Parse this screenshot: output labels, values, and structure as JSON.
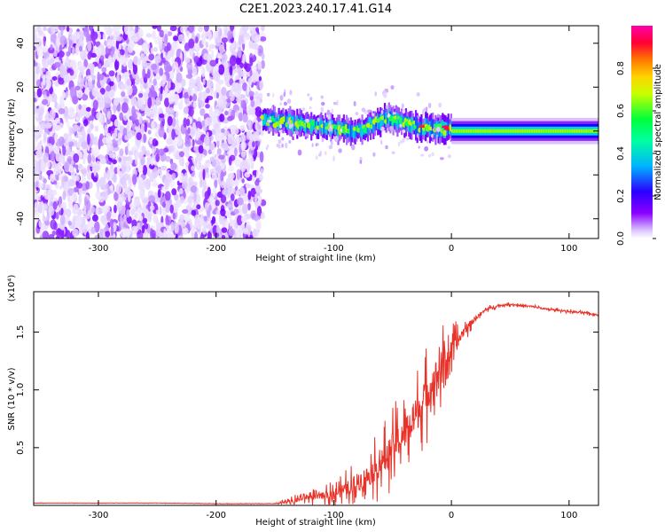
{
  "chart_data": [
    {
      "type": "heatmap",
      "title": "C2E1.2023.240.17.41.G14",
      "xlabel": "Height of straight line (km)",
      "ylabel": "Frequency (Hz)",
      "xlim": [
        -355,
        125
      ],
      "ylim": [
        -49,
        48
      ],
      "xticks": [
        -300,
        -200,
        -100,
        0,
        100
      ],
      "yticks": [
        -40,
        -20,
        0,
        20,
        40
      ],
      "colorbar": {
        "label": "Normalized spectral amplitude",
        "range": [
          0.0,
          1.0
        ],
        "ticks": [
          "0.0",
          "0.2",
          "0.4",
          "0.6",
          "0.8"
        ],
        "colormap": [
          "#ffffff",
          "#d9c2ff",
          "#7a00ff",
          "#1a00ff",
          "#00c8ff",
          "#00ff66",
          "#aaff00",
          "#ffd400",
          "#ff7a00",
          "#ff0033",
          "#ff00aa"
        ]
      },
      "regions": [
        {
          "name": "noise",
          "x_range": [
            -355,
            -160
          ],
          "y_range": [
            -49,
            48
          ]
        },
        {
          "name": "transition",
          "x_range": [
            -160,
            0
          ],
          "center_freq_hz": [
            [
              -160,
              5
            ],
            [
              -120,
              3
            ],
            [
              -80,
              0
            ],
            [
              -55,
              6
            ],
            [
              -30,
              2
            ],
            [
              0,
              1
            ]
          ],
          "half_width_hz": 5
        },
        {
          "name": "carrier",
          "x_range": [
            0,
            125
          ],
          "center_freq_hz": 0,
          "half_width_hz": 2
        }
      ]
    },
    {
      "type": "line",
      "xlabel": "Height of straight line (km)",
      "ylabel": "SNR (10 * v/v)",
      "y_multiplier": "(x10⁴)",
      "xlim": [
        -355,
        125
      ],
      "ylim": [
        0.0,
        1.85
      ],
      "xticks": [
        -300,
        -200,
        -100,
        0,
        100
      ],
      "yticks": [
        0.5,
        1.0,
        1.5
      ],
      "grid": false,
      "series": [
        {
          "color": "#e8332a",
          "x": [
            -355,
            -300,
            -250,
            -200,
            -150,
            -135,
            -125,
            -110,
            -100,
            -90,
            -80,
            -70,
            -60,
            -50,
            -40,
            -30,
            -20,
            -10,
            0,
            10,
            20,
            30,
            40,
            50,
            60,
            70,
            80,
            90,
            100,
            110,
            125
          ],
          "y": [
            0.02,
            0.02,
            0.02,
            0.015,
            0.015,
            0.03,
            0.07,
            0.08,
            0.1,
            0.14,
            0.2,
            0.26,
            0.36,
            0.5,
            0.62,
            0.78,
            0.98,
            1.18,
            1.33,
            1.5,
            1.62,
            1.7,
            1.73,
            1.74,
            1.73,
            1.72,
            1.7,
            1.69,
            1.68,
            1.67,
            1.65
          ],
          "noise_amplitude": [
            0.003,
            0.003,
            0.003,
            0.003,
            0.003,
            0.05,
            0.07,
            0.08,
            0.12,
            0.17,
            0.22,
            0.26,
            0.32,
            0.37,
            0.4,
            0.42,
            0.44,
            0.4,
            0.25,
            0.12,
            0.05,
            0.03,
            0.02,
            0.02,
            0.02,
            0.02,
            0.02,
            0.02,
            0.02,
            0.02,
            0.02
          ]
        }
      ]
    }
  ]
}
